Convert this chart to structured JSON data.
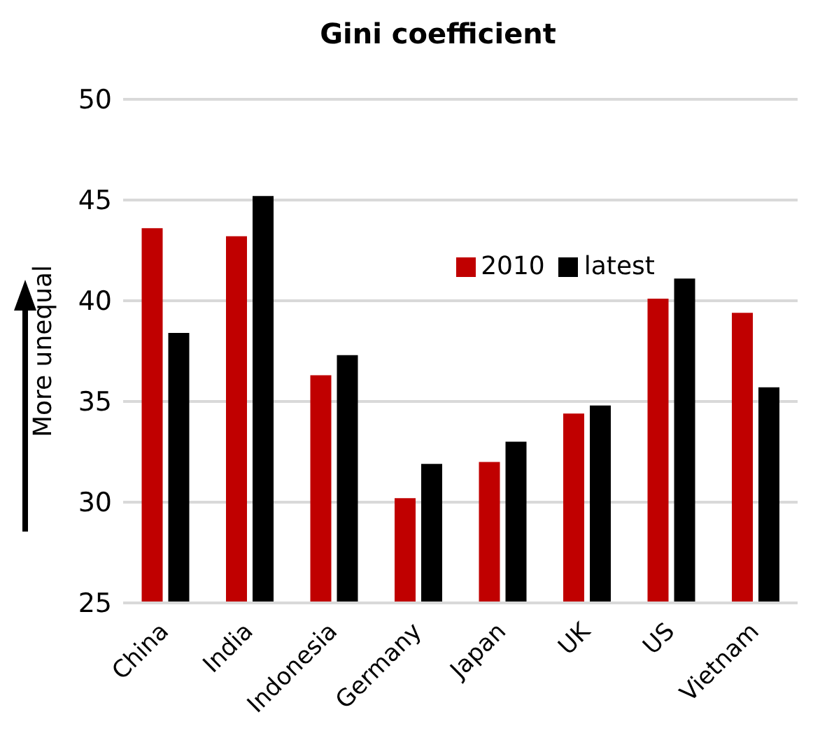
{
  "chart_data": {
    "type": "bar",
    "title": "Gini coefficient",
    "ylabel": "More unequal",
    "categories": [
      "China",
      "India",
      "Indonesia",
      "Germany",
      "Japan",
      "UK",
      "US",
      "Vietnam"
    ],
    "series": [
      {
        "name": "2010",
        "color": "#c00000",
        "values": [
          43.6,
          43.2,
          36.3,
          30.2,
          32.0,
          34.4,
          40.1,
          39.4
        ]
      },
      {
        "name": "latest",
        "color": "#000000",
        "values": [
          38.4,
          45.2,
          37.3,
          31.9,
          33.0,
          34.8,
          41.1,
          35.7
        ]
      }
    ],
    "ylim": [
      25,
      50
    ],
    "yticks": [
      25,
      30,
      35,
      40,
      45,
      50
    ],
    "grid": "y",
    "legend": "top right"
  }
}
